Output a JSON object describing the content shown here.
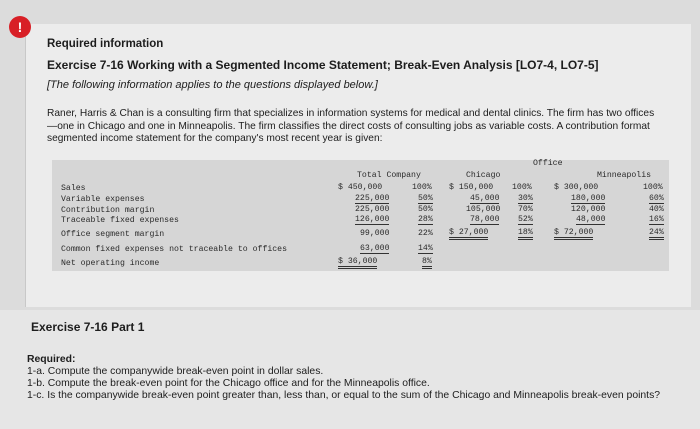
{
  "badge": "!",
  "header": {
    "required_information": "Required information",
    "exercise_title": "Exercise 7-16 Working with a Segmented Income Statement; Break-Even Analysis [LO7-4, LO7-5]",
    "note": "[The following information applies to the questions displayed below.]",
    "paragraph": "Raner, Harris & Chan is a consulting firm that specializes in information systems for medical and dental clinics. The firm has two offices—one in Chicago and one in Minneapolis. The firm classifies the direct costs of consulting jobs as variable costs. A contribution format segmented income statement for the company's most recent year is given:"
  },
  "table": {
    "group_header": "Office",
    "columns": [
      "Total Company",
      "Chicago",
      "Minneapolis"
    ],
    "rows": [
      {
        "label": "Sales",
        "total": "$ 450,000",
        "total_pct": "100%",
        "chicago": "$ 150,000",
        "chicago_pct": "100%",
        "minneapolis": "$ 300,000",
        "minneapolis_pct": "100%"
      },
      {
        "label": "Variable expenses",
        "total": "225,000",
        "total_pct": "50%",
        "chicago": "45,000",
        "chicago_pct": "30%",
        "minneapolis": "180,000",
        "minneapolis_pct": "60%"
      },
      {
        "label": "Contribution margin",
        "total": "225,000",
        "total_pct": "50%",
        "chicago": "105,000",
        "chicago_pct": "70%",
        "minneapolis": "120,000",
        "minneapolis_pct": "40%"
      },
      {
        "label": "Traceable fixed expenses",
        "total": "126,000",
        "total_pct": "28%",
        "chicago": "78,000",
        "chicago_pct": "52%",
        "minneapolis": "48,000",
        "minneapolis_pct": "16%"
      },
      {
        "label": "Office segment margin",
        "total": "99,000",
        "total_pct": "22%",
        "chicago": "$ 27,000",
        "chicago_pct": "18%",
        "minneapolis": "$ 72,000",
        "minneapolis_pct": "24%"
      },
      {
        "label": "Common fixed expenses not traceable to offices",
        "total": "63,000",
        "total_pct": "14%"
      },
      {
        "label": "Net operating income",
        "total": "$ 36,000",
        "total_pct": "8%"
      }
    ]
  },
  "part": {
    "title": "Exercise 7-16 Part 1",
    "required_label": "Required:",
    "questions": [
      "1-a. Compute the companywide break-even point in dollar sales.",
      "1-b. Compute the break-even point for the Chicago office and for the Minneapolis office.",
      "1-c. Is the companywide break-even point greater than, less than, or equal to the sum of the Chicago and Minneapolis break-even points?"
    ]
  }
}
